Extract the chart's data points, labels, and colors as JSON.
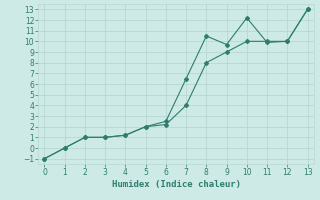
{
  "xlabel": "Humidex (Indice chaleur)",
  "x_line1": [
    0,
    1,
    2,
    3,
    4,
    5,
    6,
    7,
    8,
    9,
    10,
    11,
    12,
    13
  ],
  "y_line1": [
    -1,
    0,
    1,
    1,
    1.2,
    2,
    2.2,
    4,
    8,
    9,
    10,
    10,
    10,
    13
  ],
  "x_line2": [
    0,
    1,
    2,
    3,
    4,
    5,
    6,
    7,
    8,
    9,
    10,
    11,
    12,
    13
  ],
  "y_line2": [
    -1,
    0,
    1,
    1,
    1.2,
    2,
    2.5,
    6.5,
    10.5,
    9.7,
    12.2,
    9.9,
    10,
    13
  ],
  "line_color": "#2e7d6e",
  "marker": "D",
  "marker_size": 2.0,
  "bg_color": "#cdeae6",
  "grid_color": "#b8d8d4",
  "xlim": [
    -0.3,
    13.3
  ],
  "ylim": [
    -1.5,
    13.5
  ],
  "xticks": [
    0,
    1,
    2,
    3,
    4,
    5,
    6,
    7,
    8,
    9,
    10,
    11,
    12,
    13
  ],
  "yticks": [
    -1,
    0,
    1,
    2,
    3,
    4,
    5,
    6,
    7,
    8,
    9,
    10,
    11,
    12,
    13
  ],
  "tick_fontsize": 5.5,
  "xlabel_fontsize": 6.5
}
